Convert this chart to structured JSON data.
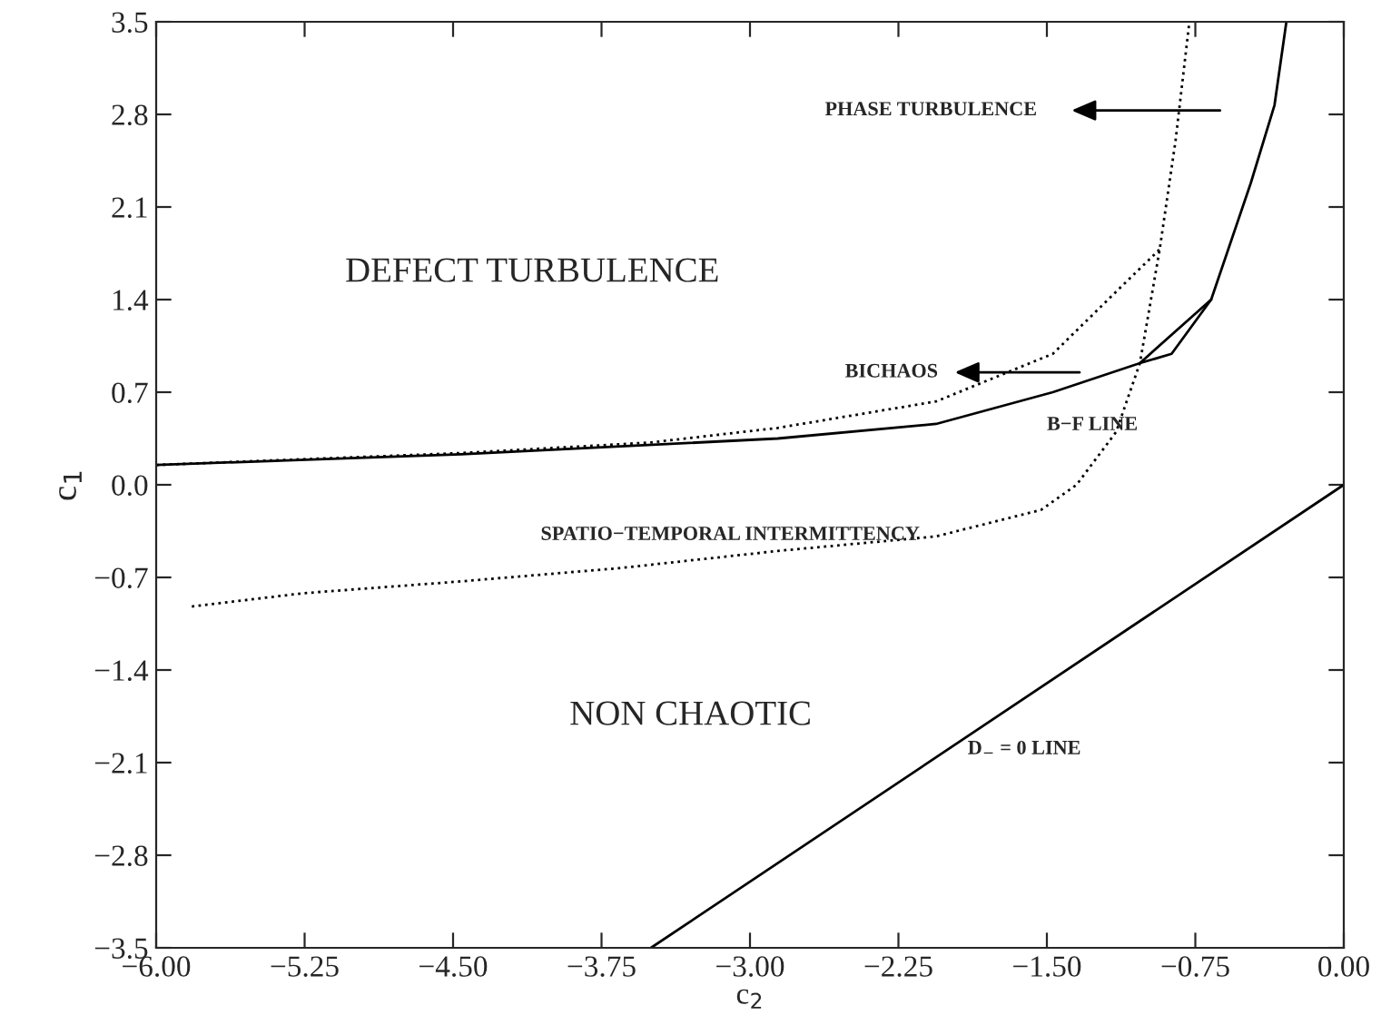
{
  "chart_data": {
    "type": "line",
    "xlabel": "c$_{2}$",
    "ylabel": "c$_{1}$",
    "xlim": [
      -6.0,
      0.0
    ],
    "ylim": [
      -3.5,
      3.5
    ],
    "xticks": [
      {
        "value": -6.0,
        "label": "−6.00"
      },
      {
        "value": -5.25,
        "label": "−5.25"
      },
      {
        "value": -4.5,
        "label": "−4.50"
      },
      {
        "value": -3.75,
        "label": "−3.75"
      },
      {
        "value": -3.0,
        "label": "−3.00"
      },
      {
        "value": -2.25,
        "label": "−2.25"
      },
      {
        "value": -1.5,
        "label": "−1.50"
      },
      {
        "value": -0.75,
        "label": "−0.75"
      },
      {
        "value": 0.0,
        "label": "0.00"
      }
    ],
    "yticks": [
      {
        "value": -3.5,
        "label": "−3.5"
      },
      {
        "value": -2.8,
        "label": "−2.8"
      },
      {
        "value": -2.1,
        "label": "−2.1"
      },
      {
        "value": -1.4,
        "label": "−1.4"
      },
      {
        "value": -0.7,
        "label": "−0.7"
      },
      {
        "value": 0.0,
        "label": "0.0"
      },
      {
        "value": 0.7,
        "label": "0.7"
      },
      {
        "value": 1.4,
        "label": "1.4"
      },
      {
        "value": 2.1,
        "label": "2.1"
      },
      {
        "value": 2.8,
        "label": "2.8"
      },
      {
        "value": 3.5,
        "label": "3.5"
      }
    ],
    "grid": false,
    "series": [
      {
        "color": "#000000",
        "line_style": "solid",
        "x": [
          -6.0,
          -4.46,
          -2.86,
          -2.06,
          -1.47,
          -1.03,
          -0.67
        ],
        "values": [
          0.15,
          0.23,
          0.35,
          0.46,
          0.7,
          0.92,
          1.4
        ]
      },
      {
        "color": "#000000",
        "line_style": "dotted",
        "x": [
          -6.0,
          -4.46,
          -3.5,
          -2.86,
          -2.06,
          -1.47,
          -1.15,
          -0.93
        ],
        "values": [
          0.15,
          0.24,
          0.32,
          0.43,
          0.63,
          0.99,
          1.46,
          1.78
        ]
      },
      {
        "color": "#000000",
        "line_style": "dotted",
        "x": [
          -5.82,
          -5.26,
          -4.46,
          -3.66,
          -2.86,
          -2.06,
          -1.53,
          -1.35,
          -1.15,
          -1.03,
          -0.93,
          -0.85,
          -0.78
        ],
        "values": [
          -0.92,
          -0.82,
          -0.73,
          -0.63,
          -0.5,
          -0.39,
          -0.19,
          0.0,
          0.4,
          0.92,
          1.78,
          2.6,
          3.5
        ]
      },
      {
        "color": "#000000",
        "line_style": "solid",
        "x": [
          -1.03,
          -0.87,
          -0.67,
          -0.47,
          -0.35,
          -0.29
        ],
        "values": [
          0.92,
          0.99,
          1.4,
          2.28,
          2.87,
          3.5
        ]
      },
      {
        "color": "#000000",
        "line_style": "solid",
        "x": [
          -3.5,
          0.0
        ],
        "values": [
          -3.5,
          0.0
        ]
      }
    ],
    "annotations": [
      "DEFECT TURBULENCE",
      "NON CHAOTIC",
      "PHASE TURBULENCE",
      "BICHAOS",
      "B−F LINE",
      "SPATIO−TEMPORAL INTERMITTENCY",
      "D$_{−}$ = 0 LINE"
    ]
  }
}
